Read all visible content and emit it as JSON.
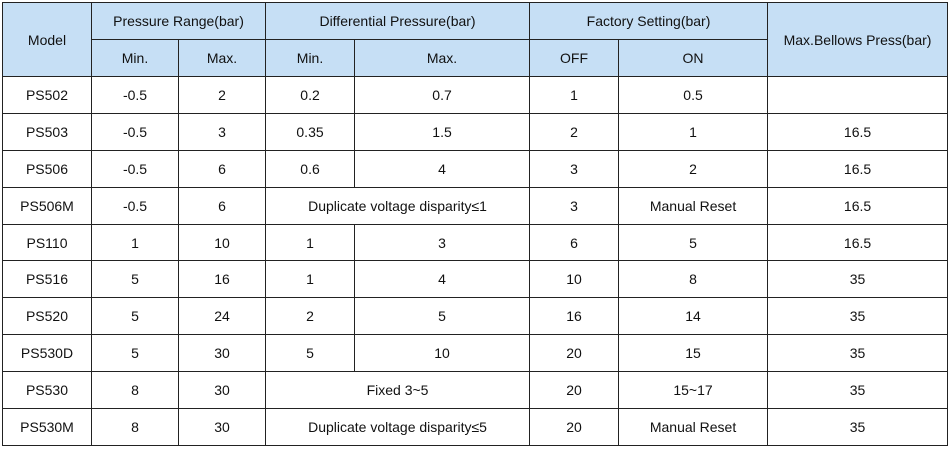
{
  "headers": {
    "model": "Model",
    "pressure_range": "Pressure Range(bar)",
    "differential_pressure": "Differential Pressure(bar)",
    "factory_setting": "Factory Setting(bar)",
    "max_bellows": "Max.Bellows Press(bar)",
    "min": "Min.",
    "max": "Max.",
    "off": "OFF",
    "on": "ON"
  },
  "rows": [
    {
      "model": "PS502",
      "pmin": "-0.5",
      "pmax": "2",
      "dmin": "0.2",
      "dmax": "0.7",
      "off": "1",
      "on": "0.5",
      "bellows": ""
    },
    {
      "model": "PS503",
      "pmin": "-0.5",
      "pmax": "3",
      "dmin": "0.35",
      "dmax": "1.5",
      "off": "2",
      "on": "1",
      "bellows": "16.5"
    },
    {
      "model": "PS506",
      "pmin": "-0.5",
      "pmax": "6",
      "dmin": "0.6",
      "dmax": "4",
      "off": "3",
      "on": "2",
      "bellows": "16.5"
    },
    {
      "model": "PS506M",
      "pmin": "-0.5",
      "pmax": "6",
      "diff": "Duplicate voltage disparity≤1",
      "off": "3",
      "on": "Manual Reset",
      "bellows": "16.5"
    },
    {
      "model": "PS110",
      "pmin": "1",
      "pmax": "10",
      "dmin": "1",
      "dmax": "3",
      "off": "6",
      "on": "5",
      "bellows": "16.5"
    },
    {
      "model": "PS516",
      "pmin": "5",
      "pmax": "16",
      "dmin": "1",
      "dmax": "4",
      "off": "10",
      "on": "8",
      "bellows": "35"
    },
    {
      "model": "PS520",
      "pmin": "5",
      "pmax": "24",
      "dmin": "2",
      "dmax": "5",
      "off": "16",
      "on": "14",
      "bellows": "35"
    },
    {
      "model": "PS530D",
      "pmin": "5",
      "pmax": "30",
      "dmin": "5",
      "dmax": "10",
      "off": "20",
      "on": "15",
      "bellows": "35"
    },
    {
      "model": "PS530",
      "pmin": "8",
      "pmax": "30",
      "diff": "Fixed 3~5",
      "off": "20",
      "on": "15~17",
      "bellows": "35"
    },
    {
      "model": "PS530M",
      "pmin": "8",
      "pmax": "30",
      "diff": "Duplicate voltage disparity≤5",
      "off": "20",
      "on": "Manual Reset",
      "bellows": "35"
    }
  ]
}
